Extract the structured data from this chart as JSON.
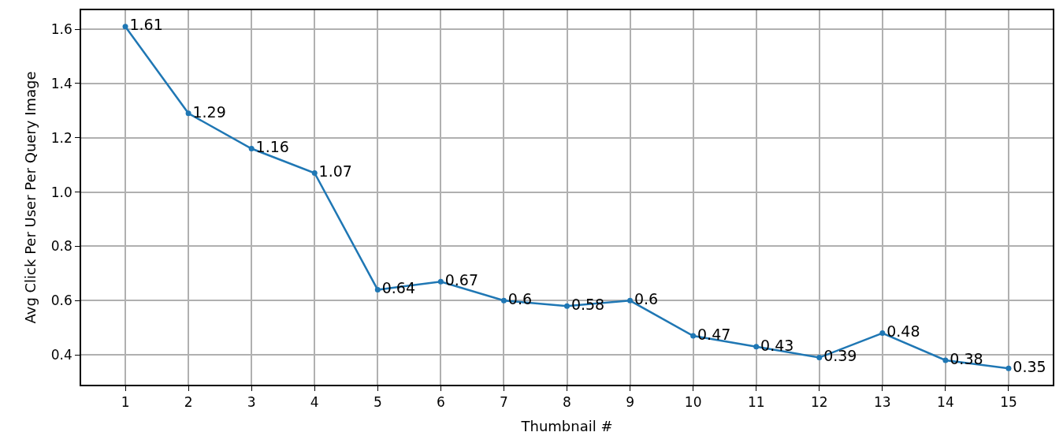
{
  "chart_data": {
    "type": "line",
    "xlabel": "Thumbnail #",
    "ylabel": "Avg Click Per User Per Query Image",
    "x": [
      1,
      2,
      3,
      4,
      5,
      6,
      7,
      8,
      9,
      10,
      11,
      12,
      13,
      14,
      15
    ],
    "series": [
      {
        "color": "#1f77b4",
        "values": [
          1.61,
          1.29,
          1.16,
          1.07,
          0.64,
          0.67,
          0.6,
          0.58,
          0.6,
          0.47,
          0.43,
          0.39,
          0.48,
          0.38,
          0.35
        ]
      }
    ],
    "xlim": [
      0.3,
      15.7
    ],
    "xticks": [
      1,
      2,
      3,
      4,
      5,
      6,
      7,
      8,
      9,
      10,
      11,
      12,
      13,
      14,
      15
    ],
    "ylim": [
      0.29,
      1.67
    ],
    "yticks": [
      {
        "value": 0.4,
        "label": "0.4"
      },
      {
        "value": 0.6,
        "label": "0.6"
      },
      {
        "value": 0.8,
        "label": "0.8"
      },
      {
        "value": 1.0,
        "label": "1.0"
      },
      {
        "value": 1.2,
        "label": "1.2"
      },
      {
        "value": 1.4,
        "label": "1.4"
      },
      {
        "value": 1.6,
        "label": "1.6"
      }
    ],
    "grid": true,
    "marker": "circle",
    "line_style": "solid",
    "data_labels": true
  }
}
